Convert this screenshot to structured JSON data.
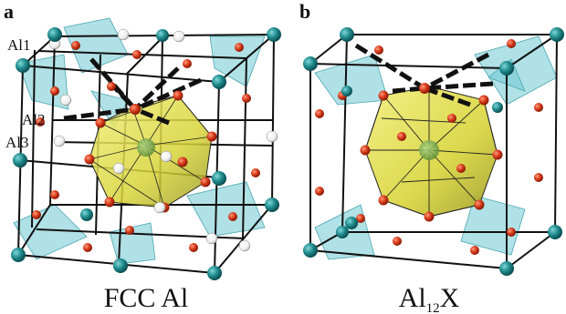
{
  "panels": [
    {
      "letter": "a",
      "caption": "FCC Al",
      "atom_labels": [
        "Al1",
        "Al2",
        "Al3"
      ]
    },
    {
      "letter": "b",
      "caption_main": "Al",
      "caption_subscript": "12",
      "caption_tail": "X"
    }
  ],
  "colors": {
    "teal_atom": "#1f8a8c",
    "red_atom": "#d63a1a",
    "white_atom": "#f4f4f4",
    "icosahedron": "#d8d43a",
    "tetrahedron": "#6fc9d1",
    "edges": "#111111",
    "bond_dash": "#c7a15a"
  }
}
